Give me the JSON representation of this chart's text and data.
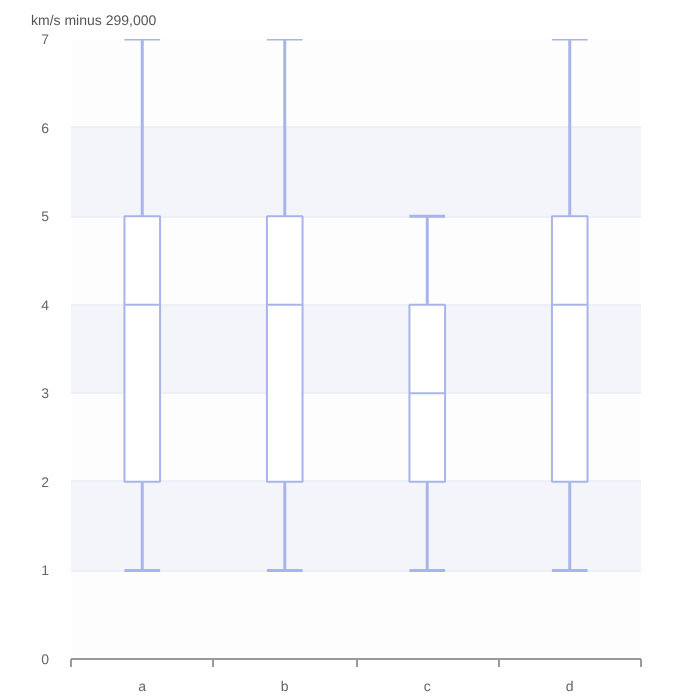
{
  "chart_data": {
    "type": "box",
    "ylabel": "km/s minus 299,000",
    "categories": [
      "a",
      "b",
      "c",
      "d"
    ],
    "color": "#a9b4ea",
    "boxes": [
      {
        "low": 1,
        "q1": 2,
        "median": 4,
        "q3": 5,
        "high": 7
      },
      {
        "low": 1,
        "q1": 2,
        "median": 4,
        "q3": 5,
        "high": 7
      },
      {
        "low": 1,
        "q1": 2,
        "median": 3,
        "q3": 4,
        "high": 5
      },
      {
        "low": 1,
        "q1": 2,
        "median": 4,
        "q3": 5,
        "high": 7
      }
    ],
    "ylim": [
      0,
      7
    ],
    "yticks": [
      0,
      1,
      2,
      3,
      4,
      5,
      6,
      7
    ],
    "grid": "y"
  }
}
